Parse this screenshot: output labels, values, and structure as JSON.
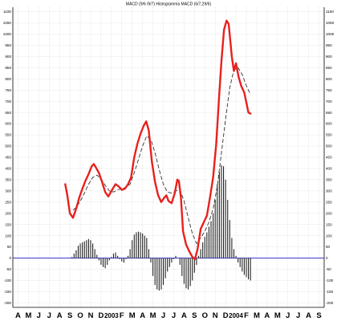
{
  "chart_data": {
    "type": "line",
    "title": "MACD (9/6 /9/7)  Histogramma MACD (6/7,29/6)",
    "ylim": [
      -220,
      1120
    ],
    "yticks": [
      1100,
      1050,
      1000,
      950,
      900,
      850,
      800,
      750,
      700,
      650,
      600,
      550,
      500,
      450,
      400,
      350,
      300,
      250,
      200,
      150,
      100,
      50,
      0,
      -50,
      -100,
      -150,
      -200
    ],
    "month_labels": [
      "A",
      "M",
      "J",
      "J",
      "A",
      "S",
      "O",
      "N",
      "D",
      "2003",
      "F",
      "M",
      "A",
      "M",
      "J",
      "J",
      "A",
      "S",
      "O",
      "N",
      "D",
      "2004",
      "F",
      "M",
      "A",
      "M",
      "J",
      "J",
      "A",
      "S"
    ],
    "grid": true,
    "zero_line": 0,
    "colors": {
      "macd": "#e8201e",
      "signal": "#333333",
      "histogram": "#222222",
      "zero": "#3333cc",
      "grid": "#c8c8c8"
    },
    "series": [
      {
        "style": "solid",
        "points": [
          [
            4.55,
            330
          ],
          [
            4.75,
            280
          ],
          [
            5.0,
            200
          ],
          [
            5.3,
            180
          ],
          [
            5.6,
            220
          ],
          [
            5.9,
            270
          ],
          [
            6.2,
            310
          ],
          [
            6.5,
            345
          ],
          [
            6.8,
            375
          ],
          [
            7.1,
            410
          ],
          [
            7.3,
            420
          ],
          [
            7.5,
            405
          ],
          [
            7.8,
            380
          ],
          [
            8.1,
            340
          ],
          [
            8.4,
            295
          ],
          [
            8.7,
            275
          ],
          [
            9.0,
            300
          ],
          [
            9.4,
            330
          ],
          [
            9.7,
            320
          ],
          [
            10.0,
            305
          ],
          [
            10.3,
            310
          ],
          [
            10.6,
            330
          ],
          [
            10.9,
            360
          ],
          [
            11.2,
            450
          ],
          [
            11.5,
            510
          ],
          [
            11.8,
            555
          ],
          [
            12.1,
            590
          ],
          [
            12.35,
            610
          ],
          [
            12.6,
            570
          ],
          [
            12.9,
            430
          ],
          [
            13.2,
            340
          ],
          [
            13.5,
            280
          ],
          [
            13.8,
            250
          ],
          [
            14.1,
            270
          ],
          [
            14.3,
            280
          ],
          [
            14.5,
            255
          ],
          [
            14.8,
            245
          ],
          [
            15.1,
            290
          ],
          [
            15.35,
            350
          ],
          [
            15.5,
            345
          ],
          [
            15.7,
            270
          ],
          [
            15.9,
            120
          ],
          [
            16.2,
            60
          ],
          [
            16.5,
            30
          ],
          [
            16.8,
            5
          ],
          [
            17.05,
            -5
          ],
          [
            17.3,
            40
          ],
          [
            17.6,
            130
          ],
          [
            17.9,
            160
          ],
          [
            18.2,
            190
          ],
          [
            18.5,
            270
          ],
          [
            18.8,
            360
          ],
          [
            19.1,
            510
          ],
          [
            19.35,
            700
          ],
          [
            19.6,
            880
          ],
          [
            19.85,
            1020
          ],
          [
            20.1,
            1060
          ],
          [
            20.3,
            1045
          ],
          [
            20.6,
            900
          ],
          [
            20.8,
            835
          ],
          [
            21.0,
            870
          ],
          [
            21.25,
            810
          ],
          [
            21.5,
            770
          ],
          [
            21.8,
            740
          ],
          [
            22.0,
            695
          ],
          [
            22.2,
            650
          ],
          [
            22.4,
            645
          ]
        ]
      },
      {
        "style": "dashed",
        "points": [
          [
            5.3,
            215
          ],
          [
            5.6,
            225
          ],
          [
            6.0,
            255
          ],
          [
            6.4,
            290
          ],
          [
            6.8,
            330
          ],
          [
            7.2,
            360
          ],
          [
            7.6,
            370
          ],
          [
            8.0,
            355
          ],
          [
            8.4,
            325
          ],
          [
            8.8,
            300
          ],
          [
            9.2,
            295
          ],
          [
            9.6,
            305
          ],
          [
            10.0,
            310
          ],
          [
            10.4,
            315
          ],
          [
            10.8,
            330
          ],
          [
            11.2,
            380
          ],
          [
            11.6,
            440
          ],
          [
            12.0,
            500
          ],
          [
            12.4,
            545
          ],
          [
            12.8,
            530
          ],
          [
            13.2,
            470
          ],
          [
            13.6,
            395
          ],
          [
            14.0,
            330
          ],
          [
            14.4,
            295
          ],
          [
            14.8,
            290
          ],
          [
            15.2,
            300
          ],
          [
            15.6,
            305
          ],
          [
            16.0,
            255
          ],
          [
            16.4,
            180
          ],
          [
            16.8,
            110
          ],
          [
            17.2,
            65
          ],
          [
            17.6,
            90
          ],
          [
            18.0,
            120
          ],
          [
            18.4,
            160
          ],
          [
            18.8,
            220
          ],
          [
            19.2,
            320
          ],
          [
            19.6,
            470
          ],
          [
            20.0,
            620
          ],
          [
            20.4,
            760
          ],
          [
            20.8,
            840
          ],
          [
            21.2,
            850
          ],
          [
            21.6,
            820
          ],
          [
            22.0,
            770
          ],
          [
            22.4,
            730
          ]
        ]
      }
    ],
    "histogram": [
      [
        5.2,
        5
      ],
      [
        5.4,
        20
      ],
      [
        5.6,
        35
      ],
      [
        5.8,
        55
      ],
      [
        6.0,
        65
      ],
      [
        6.2,
        70
      ],
      [
        6.4,
        75
      ],
      [
        6.6,
        80
      ],
      [
        6.8,
        85
      ],
      [
        7.0,
        80
      ],
      [
        7.2,
        65
      ],
      [
        7.4,
        40
      ],
      [
        7.6,
        15
      ],
      [
        7.8,
        -10
      ],
      [
        8.0,
        -30
      ],
      [
        8.2,
        -40
      ],
      [
        8.4,
        -45
      ],
      [
        8.6,
        -30
      ],
      [
        8.8,
        -10
      ],
      [
        9.0,
        5
      ],
      [
        9.2,
        20
      ],
      [
        9.4,
        25
      ],
      [
        9.6,
        10
      ],
      [
        9.8,
        -5
      ],
      [
        10.0,
        -15
      ],
      [
        10.2,
        -20
      ],
      [
        10.4,
        -5
      ],
      [
        10.6,
        10
      ],
      [
        10.8,
        40
      ],
      [
        11.0,
        80
      ],
      [
        11.2,
        105
      ],
      [
        11.4,
        115
      ],
      [
        11.6,
        118
      ],
      [
        11.8,
        115
      ],
      [
        12.0,
        110
      ],
      [
        12.2,
        100
      ],
      [
        12.4,
        90
      ],
      [
        12.6,
        40
      ],
      [
        12.8,
        -20
      ],
      [
        13.0,
        -80
      ],
      [
        13.2,
        -120
      ],
      [
        13.4,
        -140
      ],
      [
        13.6,
        -145
      ],
      [
        13.8,
        -140
      ],
      [
        14.0,
        -120
      ],
      [
        14.2,
        -90
      ],
      [
        14.4,
        -60
      ],
      [
        14.6,
        -40
      ],
      [
        14.8,
        -20
      ],
      [
        15.0,
        -5
      ],
      [
        15.2,
        10
      ],
      [
        15.4,
        0
      ],
      [
        15.6,
        -30
      ],
      [
        15.8,
        -80
      ],
      [
        16.0,
        -115
      ],
      [
        16.2,
        -135
      ],
      [
        16.4,
        -140
      ],
      [
        16.6,
        -125
      ],
      [
        16.8,
        -100
      ],
      [
        17.0,
        -65
      ],
      [
        17.2,
        -30
      ],
      [
        17.4,
        10
      ],
      [
        17.6,
        40
      ],
      [
        17.8,
        70
      ],
      [
        18.0,
        95
      ],
      [
        18.2,
        115
      ],
      [
        18.4,
        140
      ],
      [
        18.6,
        165
      ],
      [
        18.8,
        200
      ],
      [
        19.0,
        260
      ],
      [
        19.2,
        330
      ],
      [
        19.4,
        385
      ],
      [
        19.6,
        415
      ],
      [
        19.8,
        410
      ],
      [
        20.0,
        350
      ],
      [
        20.2,
        260
      ],
      [
        20.4,
        170
      ],
      [
        20.6,
        90
      ],
      [
        20.8,
        40
      ],
      [
        21.0,
        10
      ],
      [
        21.2,
        -20
      ],
      [
        21.4,
        -40
      ],
      [
        21.6,
        -60
      ],
      [
        21.8,
        -75
      ],
      [
        22.0,
        -85
      ],
      [
        22.2,
        -95
      ],
      [
        22.4,
        -100
      ]
    ]
  }
}
